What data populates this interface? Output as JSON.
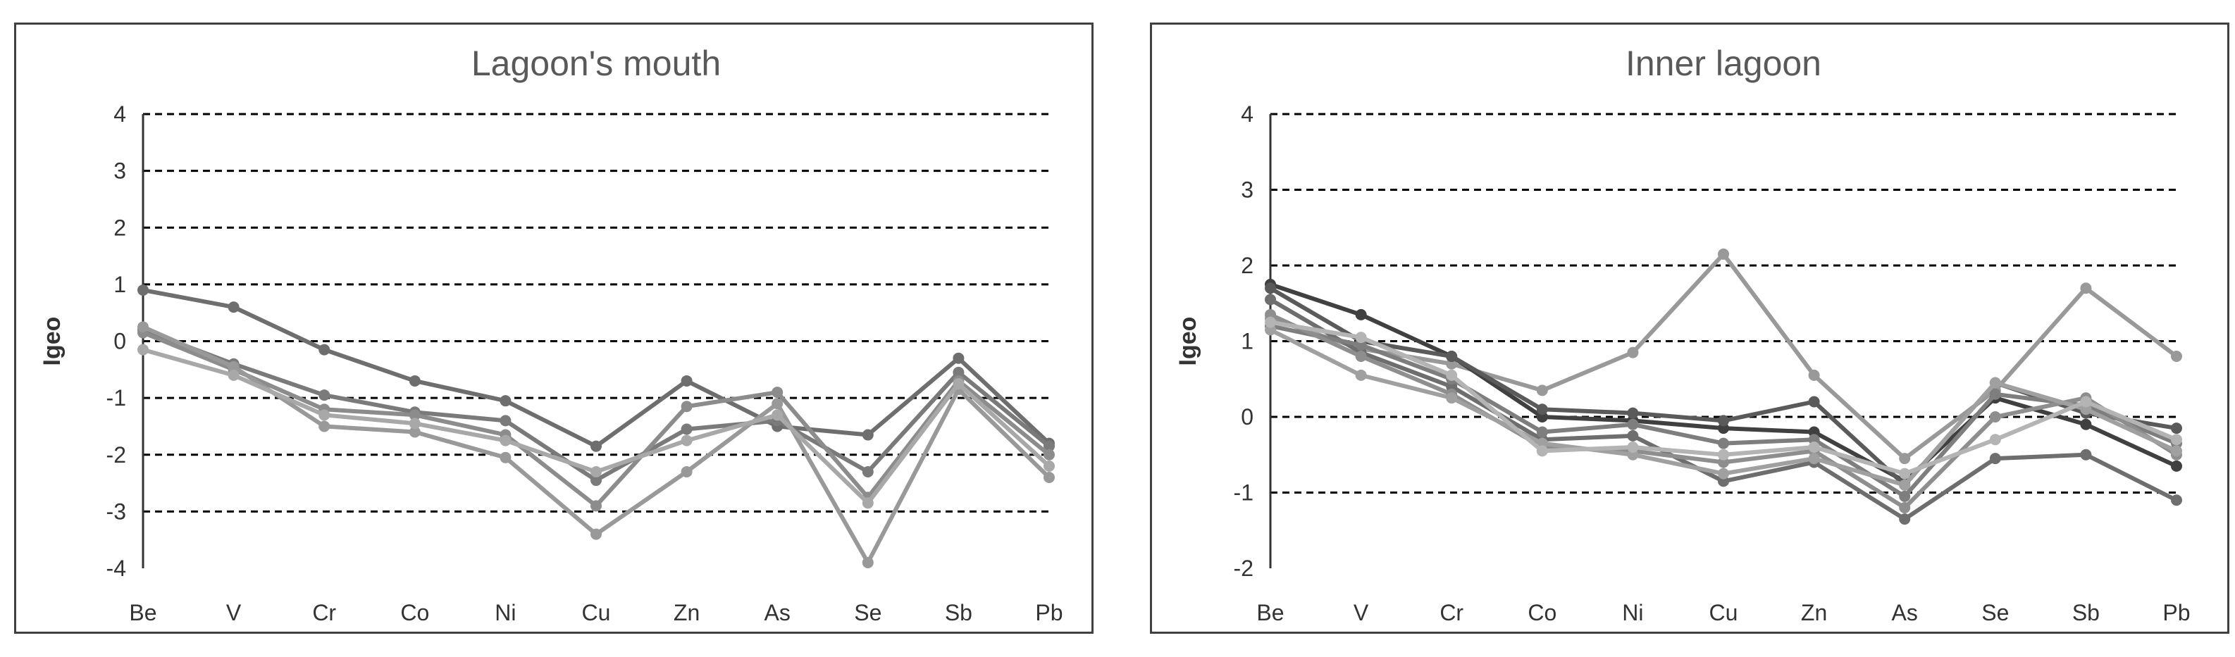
{
  "chart_data": [
    {
      "type": "line",
      "title": "Lagoon's mouth",
      "ylabel": "Igeo",
      "categories": [
        "Be",
        "V",
        "Cr",
        "Co",
        "Ni",
        "Cu",
        "Zn",
        "As",
        "Se",
        "Sb",
        "Pb"
      ],
      "ylim": [
        -4,
        4
      ],
      "yticks": [
        4,
        3,
        2,
        1,
        0,
        -1,
        -2,
        -3,
        -4
      ],
      "grid": "dashed horizontal",
      "series": [
        {
          "color": "#6e6e6e",
          "values": [
            0.9,
            0.6,
            -0.15,
            -0.7,
            -1.05,
            -1.85,
            -0.7,
            -1.5,
            -1.65,
            -0.3,
            -1.8
          ]
        },
        {
          "color": "#7a7a7a",
          "values": [
            0.2,
            -0.4,
            -0.95,
            -1.25,
            -1.4,
            -2.45,
            -1.55,
            -1.4,
            -2.3,
            -0.55,
            -1.85
          ]
        },
        {
          "color": "#8c8c8c",
          "values": [
            0.15,
            -0.5,
            -1.2,
            -1.3,
            -1.65,
            -2.9,
            -1.15,
            -0.9,
            -2.75,
            -0.7,
            -2.0
          ]
        },
        {
          "color": "#999999",
          "values": [
            0.25,
            -0.45,
            -1.5,
            -1.6,
            -2.05,
            -3.4,
            -2.3,
            -1.1,
            -3.9,
            -0.85,
            -2.4
          ]
        },
        {
          "color": "#a8a8a8",
          "values": [
            -0.15,
            -0.6,
            -1.3,
            -1.45,
            -1.75,
            -2.3,
            -1.75,
            -1.3,
            -2.85,
            -0.75,
            -2.2
          ]
        }
      ]
    },
    {
      "type": "line",
      "title": "Inner lagoon",
      "ylabel": "Igeo",
      "categories": [
        "Be",
        "V",
        "Cr",
        "Co",
        "Ni",
        "Cu",
        "Zn",
        "As",
        "Se",
        "Sb",
        "Pb"
      ],
      "ylim": [
        -2,
        4
      ],
      "yticks": [
        4,
        3,
        2,
        1,
        0,
        -1,
        -2
      ],
      "grid": "dashed horizontal",
      "series": [
        {
          "color": "#999999",
          "values": [
            1.3,
            0.9,
            0.7,
            0.35,
            0.85,
            2.15,
            0.55,
            -0.55,
            0.35,
            1.7,
            0.8
          ]
        },
        {
          "color": "#404040",
          "values": [
            1.75,
            1.35,
            0.8,
            0.0,
            -0.05,
            -0.15,
            -0.2,
            -0.85,
            0.25,
            -0.1,
            -0.65
          ]
        },
        {
          "color": "#5a5a5a",
          "values": [
            1.7,
            1.0,
            0.8,
            0.1,
            0.05,
            -0.05,
            0.2,
            -0.9,
            0.45,
            0.05,
            -0.15
          ]
        },
        {
          "color": "#6e6e6e",
          "values": [
            1.55,
            0.85,
            0.4,
            -0.3,
            -0.25,
            -0.85,
            -0.6,
            -1.35,
            -0.55,
            -0.5,
            -1.1
          ]
        },
        {
          "color": "#7e7e7e",
          "values": [
            1.2,
            0.95,
            0.5,
            -0.2,
            -0.1,
            -0.35,
            -0.3,
            -1.05,
            0.3,
            0.15,
            -0.35
          ]
        },
        {
          "color": "#8e8e8e",
          "values": [
            1.35,
            0.8,
            0.3,
            -0.4,
            -0.45,
            -0.6,
            -0.45,
            -1.2,
            0.0,
            0.25,
            -0.5
          ]
        },
        {
          "color": "#a0a0a0",
          "values": [
            1.15,
            0.55,
            0.25,
            -0.35,
            -0.5,
            -0.75,
            -0.55,
            -0.9,
            0.45,
            0.1,
            -0.45
          ]
        },
        {
          "color": "#b4b4b4",
          "values": [
            1.25,
            1.05,
            0.55,
            -0.45,
            -0.4,
            -0.5,
            -0.4,
            -0.75,
            -0.3,
            0.2,
            -0.3
          ]
        }
      ]
    }
  ]
}
